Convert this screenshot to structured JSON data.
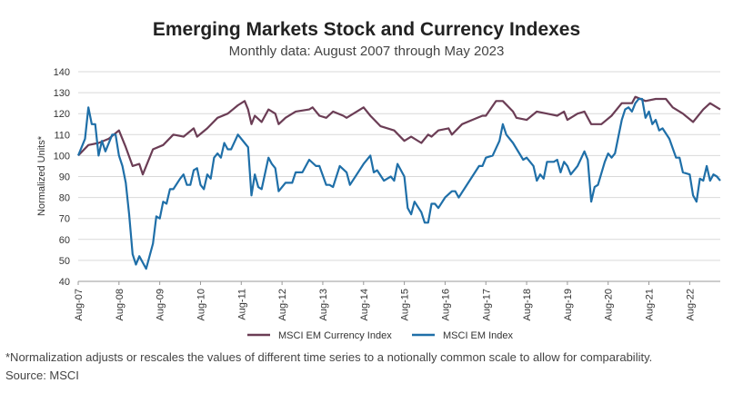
{
  "chart_data": {
    "type": "line",
    "title": "Emerging Markets Stock and Currency Indexes",
    "subtitle": "Monthly data: August 2007 through May 2023",
    "ylabel": "Normalized Units*",
    "xlabel": "",
    "ylim": [
      40,
      140
    ],
    "yticks": [
      "140",
      "130",
      "120",
      "110",
      "100",
      "90",
      "80",
      "70",
      "60",
      "50",
      "40"
    ],
    "xticks": [
      "Aug-07",
      "Aug-08",
      "Aug-09",
      "Aug-10",
      "Aug-11",
      "Aug-12",
      "Aug-13",
      "Aug-14",
      "Aug-15",
      "Aug-16",
      "Aug-17",
      "Aug-18",
      "Aug-19",
      "Aug-20",
      "Aug-21",
      "Aug-22"
    ],
    "xrange": [
      "Aug-07",
      "May-23"
    ],
    "grid": "horizontal",
    "legend": "bottom",
    "series": [
      {
        "name": "MSCI EM Currency Index",
        "color": "#6b3d55",
        "points": [
          [
            "Aug-07",
            100
          ],
          [
            "Nov-07",
            105
          ],
          [
            "Feb-08",
            106
          ],
          [
            "May-08",
            108
          ],
          [
            "Aug-08",
            112
          ],
          [
            "Oct-08",
            104
          ],
          [
            "Dec-08",
            95
          ],
          [
            "Feb-09",
            96
          ],
          [
            "Mar-09",
            91
          ],
          [
            "Jun-09",
            103
          ],
          [
            "Sep-09",
            105
          ],
          [
            "Dec-09",
            110
          ],
          [
            "Mar-10",
            109
          ],
          [
            "Jun-10",
            113
          ],
          [
            "Jul-10",
            109
          ],
          [
            "Oct-10",
            113
          ],
          [
            "Jan-11",
            118
          ],
          [
            "Apr-11",
            120
          ],
          [
            "Jul-11",
            124
          ],
          [
            "Sep-11",
            126
          ],
          [
            "Oct-11",
            122
          ],
          [
            "Nov-11",
            115
          ],
          [
            "Dec-11",
            119
          ],
          [
            "Feb-12",
            116
          ],
          [
            "Apr-12",
            122
          ],
          [
            "Jun-12",
            120
          ],
          [
            "Jul-12",
            115
          ],
          [
            "Sep-12",
            118
          ],
          [
            "Dec-12",
            121
          ],
          [
            "Apr-13",
            122
          ],
          [
            "May-13",
            123
          ],
          [
            "Jul-13",
            119
          ],
          [
            "Sep-13",
            118
          ],
          [
            "Nov-13",
            121
          ],
          [
            "Feb-14",
            119
          ],
          [
            "Mar-14",
            118
          ],
          [
            "Jun-14",
            121
          ],
          [
            "Aug-14",
            123
          ],
          [
            "Oct-14",
            119
          ],
          [
            "Jan-15",
            114
          ],
          [
            "May-15",
            112
          ],
          [
            "Aug-15",
            107
          ],
          [
            "Oct-15",
            109
          ],
          [
            "Jan-16",
            106
          ],
          [
            "Mar-16",
            110
          ],
          [
            "Apr-16",
            109
          ],
          [
            "Jun-16",
            112
          ],
          [
            "Sep-16",
            113
          ],
          [
            "Oct-16",
            110
          ],
          [
            "Jan-17",
            115
          ],
          [
            "Apr-17",
            117
          ],
          [
            "Jul-17",
            119
          ],
          [
            "Aug-17",
            119
          ],
          [
            "Nov-17",
            126
          ],
          [
            "Jan-18",
            126
          ],
          [
            "Apr-18",
            121
          ],
          [
            "May-18",
            118
          ],
          [
            "Aug-18",
            117
          ],
          [
            "Nov-18",
            121
          ],
          [
            "Feb-19",
            120
          ],
          [
            "May-19",
            119
          ],
          [
            "Jul-19",
            121
          ],
          [
            "Aug-19",
            117
          ],
          [
            "Nov-19",
            120
          ],
          [
            "Jan-20",
            121
          ],
          [
            "Mar-20",
            115
          ],
          [
            "Jun-20",
            115
          ],
          [
            "Sep-20",
            119
          ],
          [
            "Dec-20",
            125
          ],
          [
            "Mar-21",
            125
          ],
          [
            "Apr-21",
            128
          ],
          [
            "Jul-21",
            126
          ],
          [
            "Oct-21",
            127
          ],
          [
            "Jan-22",
            127
          ],
          [
            "Mar-22",
            123
          ],
          [
            "Jun-22",
            120
          ],
          [
            "Sep-22",
            116
          ],
          [
            "Dec-22",
            122
          ],
          [
            "Feb-23",
            125
          ],
          [
            "Apr-23",
            123
          ],
          [
            "May-23",
            122
          ]
        ]
      },
      {
        "name": "MSCI EM Index",
        "color": "#1f6fa8",
        "points": [
          [
            "Aug-07",
            100
          ],
          [
            "Oct-07",
            108
          ],
          [
            "Nov-07",
            123
          ],
          [
            "Dec-07",
            115
          ],
          [
            "Jan-08",
            115
          ],
          [
            "Feb-08",
            100
          ],
          [
            "Mar-08",
            107
          ],
          [
            "Apr-08",
            102
          ],
          [
            "Jun-08",
            110
          ],
          [
            "Jul-08",
            110
          ],
          [
            "Aug-08",
            100
          ],
          [
            "Sep-08",
            95
          ],
          [
            "Oct-08",
            87
          ],
          [
            "Nov-08",
            72
          ],
          [
            "Dec-08",
            53
          ],
          [
            "Jan-09",
            48
          ],
          [
            "Feb-09",
            52
          ],
          [
            "Apr-09",
            46
          ],
          [
            "Jun-09",
            58
          ],
          [
            "Jul-09",
            71
          ],
          [
            "Aug-09",
            70
          ],
          [
            "Sep-09",
            78
          ],
          [
            "Oct-09",
            77
          ],
          [
            "Nov-09",
            84
          ],
          [
            "Dec-09",
            84
          ],
          [
            "Feb-10",
            89
          ],
          [
            "Mar-10",
            91
          ],
          [
            "Apr-10",
            86
          ],
          [
            "May-10",
            86
          ],
          [
            "Jun-10",
            93
          ],
          [
            "Jul-10",
            94
          ],
          [
            "Aug-10",
            86
          ],
          [
            "Sep-10",
            84
          ],
          [
            "Oct-10",
            91
          ],
          [
            "Nov-10",
            89
          ],
          [
            "Dec-10",
            99
          ],
          [
            "Jan-11",
            101
          ],
          [
            "Feb-11",
            99
          ],
          [
            "Mar-11",
            106
          ],
          [
            "Apr-11",
            103
          ],
          [
            "May-11",
            103
          ],
          [
            "Jul-11",
            110
          ],
          [
            "Sep-11",
            106
          ],
          [
            "Oct-11",
            104
          ],
          [
            "Nov-11",
            81
          ],
          [
            "Dec-11",
            91
          ],
          [
            "Jan-12",
            85
          ],
          [
            "Feb-12",
            84
          ],
          [
            "Apr-12",
            99
          ],
          [
            "May-12",
            96
          ],
          [
            "Jun-12",
            94
          ],
          [
            "Jul-12",
            83
          ],
          [
            "Sep-12",
            87
          ],
          [
            "Nov-12",
            87
          ],
          [
            "Dec-12",
            92
          ],
          [
            "Feb-13",
            92
          ],
          [
            "Apr-13",
            98
          ],
          [
            "Jun-13",
            95
          ],
          [
            "Jul-13",
            95
          ],
          [
            "Sep-13",
            86
          ],
          [
            "Oct-13",
            86
          ],
          [
            "Nov-13",
            85
          ],
          [
            "Jan-14",
            95
          ],
          [
            "Mar-14",
            92
          ],
          [
            "Apr-14",
            86
          ],
          [
            "Jun-14",
            91
          ],
          [
            "Aug-14",
            96
          ],
          [
            "Oct-14",
            100
          ],
          [
            "Nov-14",
            92
          ],
          [
            "Dec-14",
            93
          ],
          [
            "Feb-15",
            88
          ],
          [
            "Mar-15",
            89
          ],
          [
            "Apr-15",
            90
          ],
          [
            "May-15",
            88
          ],
          [
            "Jun-15",
            96
          ],
          [
            "Aug-15",
            90
          ],
          [
            "Sep-15",
            75
          ],
          [
            "Oct-15",
            72
          ],
          [
            "Nov-15",
            78
          ],
          [
            "Jan-16",
            73
          ],
          [
            "Feb-16",
            68
          ],
          [
            "Mar-16",
            68
          ],
          [
            "Apr-16",
            77
          ],
          [
            "May-16",
            77
          ],
          [
            "Jun-16",
            75
          ],
          [
            "Aug-16",
            80
          ],
          [
            "Oct-16",
            83
          ],
          [
            "Nov-16",
            83
          ],
          [
            "Dec-16",
            80
          ],
          [
            "Feb-17",
            85
          ],
          [
            "Apr-17",
            90
          ],
          [
            "Jun-17",
            95
          ],
          [
            "Jul-17",
            95
          ],
          [
            "Aug-17",
            99
          ],
          [
            "Oct-17",
            100
          ],
          [
            "Dec-17",
            107
          ],
          [
            "Jan-18",
            115
          ],
          [
            "Feb-18",
            110
          ],
          [
            "Apr-18",
            106
          ],
          [
            "Jul-18",
            98
          ],
          [
            "Aug-18",
            99
          ],
          [
            "Oct-18",
            95
          ],
          [
            "Nov-18",
            88
          ],
          [
            "Dec-18",
            91
          ],
          [
            "Jan-19",
            89
          ],
          [
            "Feb-19",
            97
          ],
          [
            "Apr-19",
            97
          ],
          [
            "May-19",
            98
          ],
          [
            "Jun-19",
            92
          ],
          [
            "Jul-19",
            97
          ],
          [
            "Aug-19",
            95
          ],
          [
            "Sep-19",
            91
          ],
          [
            "Nov-19",
            95
          ],
          [
            "Jan-20",
            102
          ],
          [
            "Feb-20",
            98
          ],
          [
            "Mar-20",
            78
          ],
          [
            "Apr-20",
            85
          ],
          [
            "May-20",
            86
          ],
          [
            "Jul-20",
            97
          ],
          [
            "Aug-20",
            101
          ],
          [
            "Sep-20",
            99
          ],
          [
            "Oct-20",
            101
          ],
          [
            "Dec-20",
            117
          ],
          [
            "Jan-21",
            122
          ],
          [
            "Feb-21",
            123
          ],
          [
            "Mar-21",
            121
          ],
          [
            "Apr-21",
            125
          ],
          [
            "May-21",
            127
          ],
          [
            "Jun-21",
            127
          ],
          [
            "Jul-21",
            118
          ],
          [
            "Aug-21",
            121
          ],
          [
            "Sep-21",
            115
          ],
          [
            "Oct-21",
            117
          ],
          [
            "Nov-21",
            112
          ],
          [
            "Dec-21",
            113
          ],
          [
            "Feb-22",
            108
          ],
          [
            "Apr-22",
            99
          ],
          [
            "May-22",
            99
          ],
          [
            "Jun-22",
            92
          ],
          [
            "Aug-22",
            91
          ],
          [
            "Sep-22",
            81
          ],
          [
            "Oct-22",
            78
          ],
          [
            "Nov-22",
            89
          ],
          [
            "Dec-22",
            88
          ],
          [
            "Jan-23",
            95
          ],
          [
            "Feb-23",
            88
          ],
          [
            "Mar-23",
            91
          ],
          [
            "Apr-23",
            90
          ],
          [
            "May-23",
            88
          ]
        ]
      }
    ]
  },
  "footnote": "*Normalization adjusts or rescales the values of different time series to a notionally common scale to allow for comparability.",
  "source": "Source: MSCI"
}
